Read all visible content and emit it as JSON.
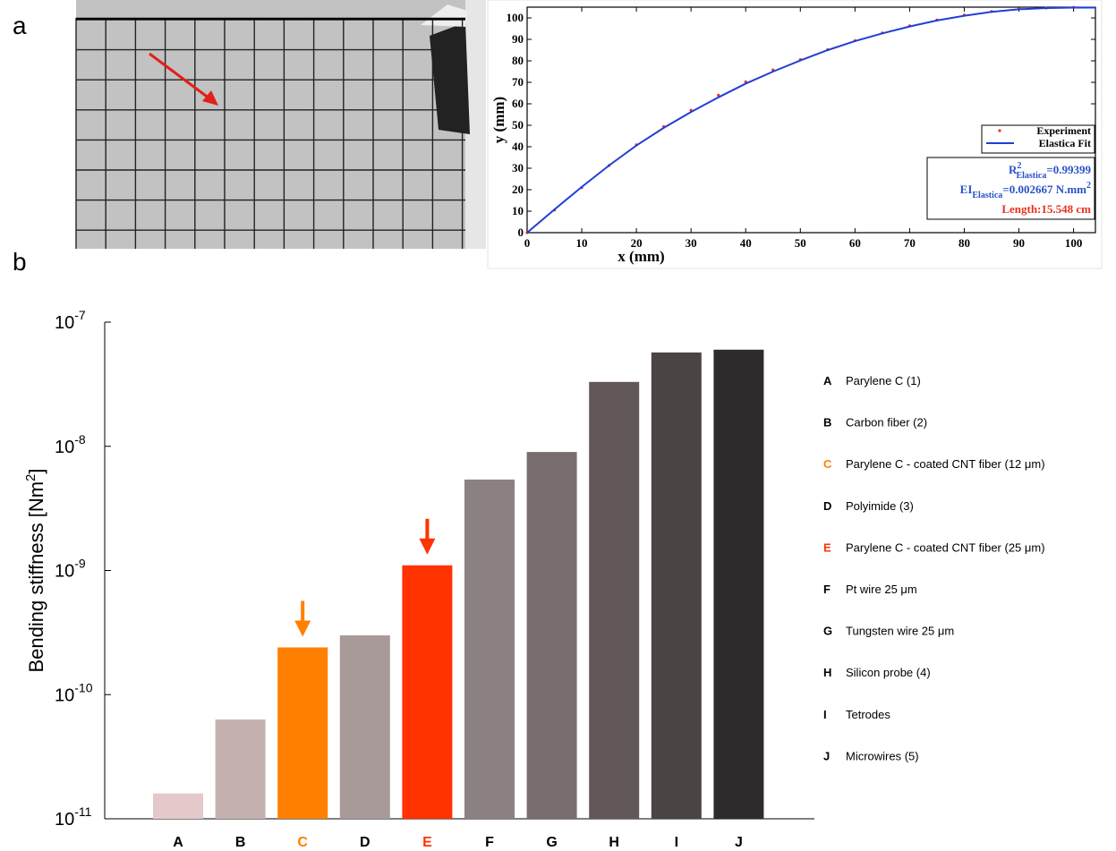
{
  "panel_labels": [
    "a",
    "b"
  ],
  "chart_data": [
    {
      "type": "line",
      "xlabel": "x (mm)",
      "ylabel": "y (mm)",
      "xlim": [
        0,
        104
      ],
      "ylim": [
        0,
        105
      ],
      "xticks": [
        0,
        10,
        20,
        30,
        40,
        50,
        60,
        70,
        80,
        90,
        100
      ],
      "yticks": [
        0,
        10,
        20,
        30,
        40,
        50,
        60,
        70,
        80,
        90,
        100
      ],
      "series": [
        {
          "name": "Experiment",
          "color": "#e8321e",
          "marker": "dot",
          "x": [
            0,
            5,
            10,
            15,
            20,
            25,
            30,
            35,
            40,
            45,
            50,
            55,
            60,
            65,
            70,
            75,
            80,
            85,
            90,
            95,
            100
          ],
          "values": [
            0,
            10.5,
            21.0,
            31.3,
            40.9,
            49.4,
            57.0,
            64.0,
            70.2,
            75.8,
            80.6,
            85.2,
            89.4,
            93.0,
            96.3,
            99.0,
            101.3,
            103.0,
            104.1,
            104.6,
            104.9
          ]
        },
        {
          "name": "Elastica Fit",
          "color": "#1f3fd8",
          "marker": "line",
          "x": [
            0,
            5,
            10,
            15,
            20,
            25,
            30,
            35,
            40,
            45,
            50,
            55,
            60,
            65,
            70,
            75,
            80,
            85,
            90,
            95,
            100,
            104
          ],
          "values": [
            0,
            10.8,
            21.3,
            31.3,
            40.6,
            48.8,
            56.2,
            63.0,
            69.4,
            75.0,
            80.2,
            85.0,
            89.2,
            92.8,
            96.0,
            98.8,
            101.0,
            102.8,
            104.0,
            104.6,
            104.8,
            104.8
          ]
        }
      ],
      "annotations": [
        {
          "text": "R",
          "sup": "2",
          "sub": "Elastica",
          "rest": "=0.99399",
          "color": "#2a52c8"
        },
        {
          "text": "EI",
          "sub": "Elastica",
          "rest": "=0.002667 N.mm",
          "sup": "2",
          "color": "#2a52c8"
        },
        {
          "text": "Length:15.548  cm",
          "color": "#e8321e"
        }
      ]
    },
    {
      "type": "bar",
      "log_scale": true,
      "ylabel": [
        "Bending stiffness [Nm",
        "2",
        "]"
      ],
      "categories": [
        "A",
        "B",
        "C",
        "D",
        "E",
        "F",
        "G",
        "H",
        "I",
        "J"
      ],
      "values": [
        1.6e-11,
        6.3e-11,
        2.4e-10,
        3e-10,
        1.1e-09,
        5.4e-09,
        9e-09,
        3.3e-08,
        5.7e-08,
        6e-08
      ],
      "colors": [
        "#e5c8c9",
        "#c3b1b0",
        "#ff8000",
        "#a99a9a",
        "#ff3300",
        "#8c8181",
        "#786e6e",
        "#625858",
        "#4a4445",
        "#2e2b2c"
      ],
      "label_colors": [
        "#000000",
        "#000000",
        "#ff8000",
        "#000000",
        "#ff3300",
        "#000000",
        "#000000",
        "#000000",
        "#000000",
        "#000000"
      ],
      "arrow_categories": [
        "C",
        "E"
      ],
      "ylim": [
        1e-11,
        1e-07
      ],
      "yticks": [
        {
          "value": 1e-11,
          "label": "10",
          "label_sup": "-11"
        },
        {
          "value": 1e-10,
          "label": "10",
          "label_sup": "-10"
        },
        {
          "value": 1e-09,
          "label": "10",
          "label_sup": "-9"
        },
        {
          "value": 1e-08,
          "label": "10",
          "label_sup": "-8"
        },
        {
          "value": 1e-07,
          "label": "10",
          "label_sup": "-7"
        }
      ],
      "legend": [
        {
          "key": "A",
          "text": "Parylene C (1)"
        },
        {
          "key": "B",
          "text": "Carbon fiber (2)"
        },
        {
          "key": "C",
          "text": "Parylene C  -  coated CNT fiber (12 μm)"
        },
        {
          "key": "D",
          "text": "Polyimide (3)"
        },
        {
          "key": "E",
          "text": "Parylene C  -  coated CNT fiber (25 μm)"
        },
        {
          "key": "F",
          "text": "Pt wire 25 μm"
        },
        {
          "key": "G",
          "text": "Tungsten wire 25 μm"
        },
        {
          "key": "H",
          "text": "Silicon probe (4)"
        },
        {
          "key": "I",
          "text": "Tetrodes"
        },
        {
          "key": "J",
          "text": "Microwires (5)"
        }
      ]
    }
  ]
}
